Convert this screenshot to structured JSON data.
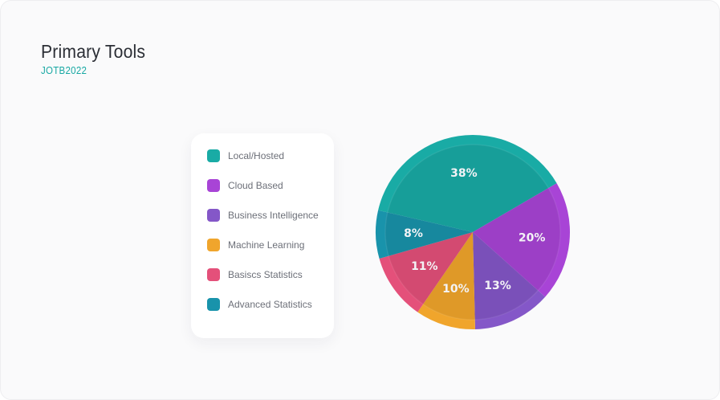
{
  "header": {
    "title": "Primary Tools",
    "subtitle": "JOTB2022"
  },
  "colors": {
    "accent": "#17a8a3"
  },
  "chart_data": {
    "type": "pie",
    "title": "Primary Tools",
    "subtitle": "JOTB2022",
    "legend_position": "left",
    "categories": [
      "Local/Hosted",
      "Cloud Based",
      "Business Intelligence",
      "Machine Learning",
      "Basiscs Statistics",
      "Advanced Statistics"
    ],
    "values": [
      38,
      20,
      13,
      10,
      11,
      8
    ],
    "value_labels": [
      "38%",
      "20%",
      "13%",
      "10%",
      "11%",
      "8%"
    ],
    "colors": [
      "#19aba5",
      "#a844d6",
      "#8457c8",
      "#f0a52c",
      "#e4507a",
      "#1993ab"
    ]
  }
}
